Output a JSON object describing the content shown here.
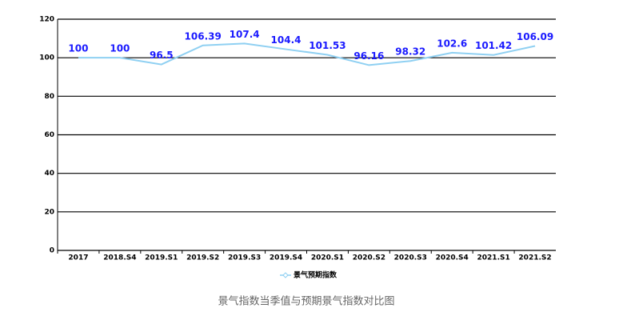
{
  "chart_data": {
    "type": "line",
    "categories": [
      "2017",
      "2018.S4",
      "2019.S1",
      "2019.S2",
      "2019.S3",
      "2019.S4",
      "2020.S1",
      "2020.S2",
      "2020.S3",
      "2020.S4",
      "2021.S1",
      "2021.S2"
    ],
    "series": [
      {
        "name": "景气预期指数",
        "color": "#8fd0f2",
        "values": [
          100,
          100,
          96.5,
          106.39,
          107.4,
          104.4,
          101.53,
          96.16,
          98.32,
          102.6,
          101.42,
          106.09
        ]
      }
    ],
    "ylim": [
      0,
      120
    ],
    "yticks": [
      0,
      20,
      40,
      60,
      80,
      100,
      120
    ],
    "grid": true,
    "caption": "景气指数当季值与预期景气指数对比图"
  }
}
